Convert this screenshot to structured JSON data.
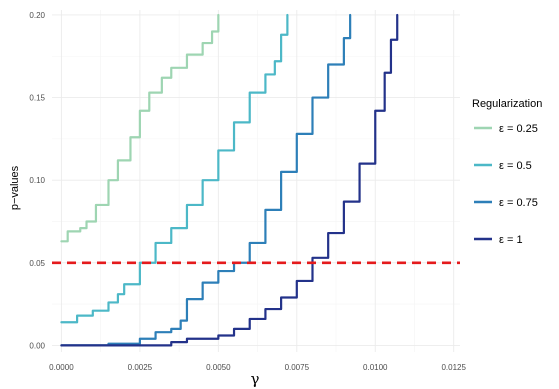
{
  "chart_data": {
    "type": "line",
    "title": "",
    "xlabel": "γ",
    "ylabel": "p−values",
    "xlim": [
      -0.0003,
      0.0127
    ],
    "ylim": [
      -0.004,
      0.203
    ],
    "x_ticks": [
      0.0,
      0.0025,
      0.005,
      0.0075,
      0.01,
      0.0125
    ],
    "x_tick_labels": [
      "0.0000",
      "0.0025",
      "0.0050",
      "0.0075",
      "0.0100",
      "0.0125"
    ],
    "y_ticks": [
      0.0,
      0.05,
      0.1,
      0.15,
      0.2
    ],
    "y_tick_labels": [
      "0.00",
      "0.05",
      "0.10",
      "0.15",
      "0.20"
    ],
    "grid": true,
    "legend": {
      "title": "Regularization",
      "position": "right"
    },
    "reference_line": {
      "y": 0.05,
      "color": "#e41a1c",
      "style": "dashed"
    },
    "series": [
      {
        "name": "ε = 0.25",
        "color": "#9ed5b2",
        "x": [
          0.0,
          0.0002,
          0.0006,
          0.0008,
          0.0011,
          0.0015,
          0.0018,
          0.0022,
          0.0025,
          0.0028,
          0.0032,
          0.0035,
          0.004,
          0.0045,
          0.0048,
          0.005
        ],
        "y": [
          0.063,
          0.069,
          0.071,
          0.075,
          0.085,
          0.1,
          0.112,
          0.126,
          0.142,
          0.153,
          0.162,
          0.168,
          0.176,
          0.183,
          0.19,
          0.2
        ]
      },
      {
        "name": "ε = 0.5",
        "color": "#4cb8c7",
        "x": [
          0.0,
          0.0005,
          0.001,
          0.0015,
          0.0018,
          0.002,
          0.0025,
          0.003,
          0.0035,
          0.004,
          0.0045,
          0.005,
          0.0055,
          0.006,
          0.0065,
          0.0068,
          0.007,
          0.0072
        ],
        "y": [
          0.014,
          0.018,
          0.021,
          0.026,
          0.031,
          0.037,
          0.05,
          0.062,
          0.071,
          0.085,
          0.1,
          0.118,
          0.135,
          0.153,
          0.164,
          0.172,
          0.188,
          0.2
        ]
      },
      {
        "name": "ε = 0.75",
        "color": "#2d7fb8",
        "x": [
          0.0,
          0.0015,
          0.0025,
          0.003,
          0.0035,
          0.0038,
          0.004,
          0.0045,
          0.005,
          0.0055,
          0.006,
          0.0065,
          0.007,
          0.0075,
          0.008,
          0.0085,
          0.009,
          0.0092
        ],
        "y": [
          0.0,
          0.001,
          0.004,
          0.008,
          0.01,
          0.015,
          0.028,
          0.038,
          0.045,
          0.05,
          0.062,
          0.082,
          0.105,
          0.128,
          0.15,
          0.17,
          0.186,
          0.2
        ]
      },
      {
        "name": "ε = 1",
        "color": "#23328a",
        "x": [
          0.0,
          0.0025,
          0.0035,
          0.004,
          0.005,
          0.0055,
          0.006,
          0.0065,
          0.007,
          0.0075,
          0.008,
          0.0085,
          0.009,
          0.0095,
          0.01,
          0.0103,
          0.0105,
          0.0107
        ],
        "y": [
          0.0,
          0.0,
          0.002,
          0.004,
          0.006,
          0.01,
          0.016,
          0.022,
          0.029,
          0.039,
          0.053,
          0.068,
          0.087,
          0.11,
          0.142,
          0.165,
          0.185,
          0.2
        ]
      }
    ]
  }
}
